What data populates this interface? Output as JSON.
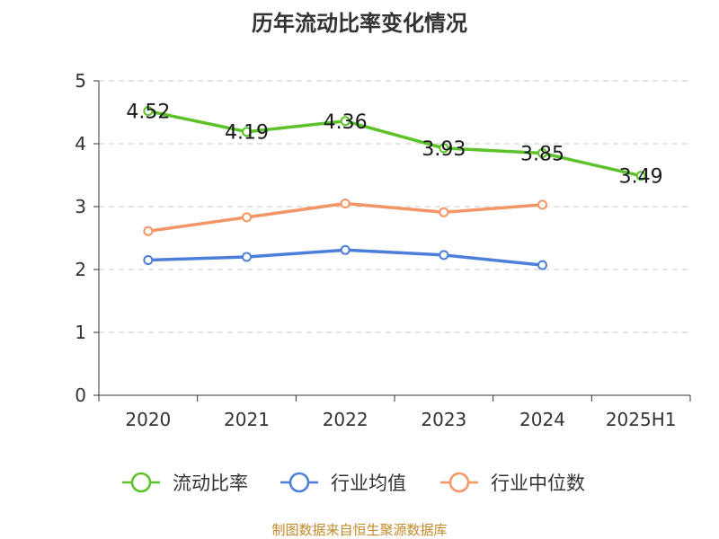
{
  "chart_data": {
    "type": "line",
    "title": "历年流动比率变化情况",
    "categories": [
      "2020",
      "2021",
      "2022",
      "2023",
      "2024",
      "2025H1"
    ],
    "yticks": [
      "0",
      "1",
      "2",
      "3",
      "4",
      "5"
    ],
    "ylim": [
      0,
      5
    ],
    "grid": true,
    "legend_position": "bottom",
    "series": [
      {
        "name": "流动比率",
        "color": "#5cc22a",
        "values": [
          4.52,
          4.19,
          4.36,
          3.93,
          3.85,
          3.49
        ],
        "labels": [
          "4.52",
          "4.19",
          "4.36",
          "3.93",
          "3.85",
          "3.49"
        ]
      },
      {
        "name": "行业均值",
        "color": "#4b7fd9",
        "values": [
          2.15,
          2.2,
          2.31,
          2.23,
          2.07,
          null
        ]
      },
      {
        "name": "行业中位数",
        "color": "#f39564",
        "values": [
          2.61,
          2.83,
          3.05,
          2.91,
          3.03,
          null
        ]
      }
    ]
  },
  "footer": {
    "source": "制图数据来自恒生聚源数据库"
  }
}
